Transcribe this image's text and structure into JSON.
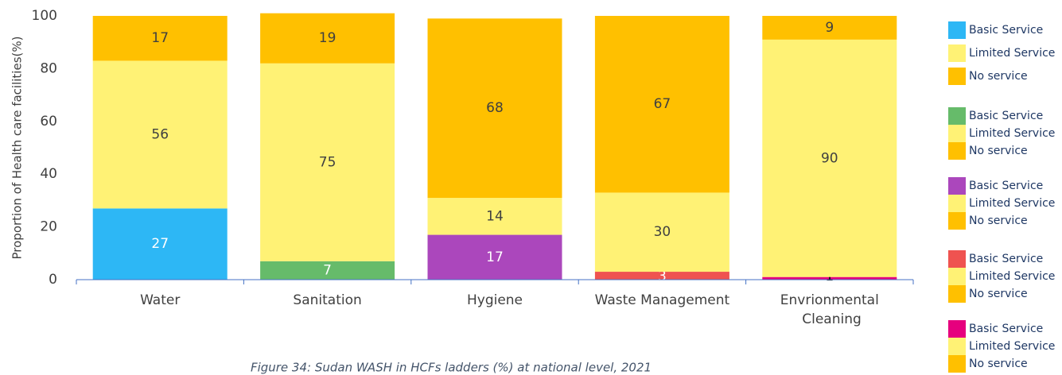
{
  "chart_data": {
    "type": "stacked_bar",
    "y_axis_label": "Proportion of Health care facilities(%)",
    "caption": "Figure 34: Sudan WASH in HCFs ladders (%) at national level, 2021",
    "categories": [
      "Water",
      "Sanitation",
      "Hygiene",
      "Waste Management",
      "Envrionmental Cleaning"
    ],
    "ylim": [
      0,
      100
    ],
    "yticks": [
      0,
      20,
      40,
      60,
      80,
      100
    ],
    "series": [
      {
        "name": "Basic Service",
        "color": "#2db7f5",
        "values": [
          27,
          null,
          null,
          null,
          null
        ]
      },
      {
        "name": "Limited Service",
        "color": "#fff275",
        "values": [
          56,
          null,
          null,
          null,
          null
        ]
      },
      {
        "name": "No service",
        "color": "#ffc000",
        "values": [
          17,
          null,
          null,
          null,
          null
        ]
      },
      {
        "name": "Basic Service",
        "color": "#66bb6a",
        "values": [
          null,
          7,
          null,
          null,
          null
        ]
      },
      {
        "name": "Limited Service",
        "color": "#fff275",
        "values": [
          null,
          75,
          null,
          null,
          null
        ]
      },
      {
        "name": "No service",
        "color": "#ffc000",
        "values": [
          null,
          19,
          null,
          null,
          null
        ]
      },
      {
        "name": "Basic Service",
        "color": "#ab47bc",
        "values": [
          null,
          null,
          17,
          null,
          null
        ]
      },
      {
        "name": "Limited Service",
        "color": "#fff275",
        "values": [
          null,
          null,
          14,
          null,
          null
        ]
      },
      {
        "name": "No service",
        "color": "#ffc000",
        "values": [
          null,
          null,
          68,
          null,
          null
        ]
      },
      {
        "name": "Basic Service",
        "color": "#ef5350",
        "values": [
          null,
          null,
          null,
          3,
          null
        ]
      },
      {
        "name": "Limited Service",
        "color": "#fff275",
        "values": [
          null,
          null,
          null,
          30,
          null
        ]
      },
      {
        "name": "No service",
        "color": "#ffc000",
        "values": [
          null,
          null,
          null,
          67,
          null
        ]
      },
      {
        "name": "Basic Service",
        "color": "#e6007e",
        "values": [
          null,
          null,
          null,
          null,
          1
        ]
      },
      {
        "name": "Limited Service",
        "color": "#fff275",
        "values": [
          null,
          null,
          null,
          null,
          90
        ]
      },
      {
        "name": "No service",
        "color": "#ffc000",
        "values": [
          null,
          null,
          null,
          null,
          9
        ]
      }
    ]
  }
}
